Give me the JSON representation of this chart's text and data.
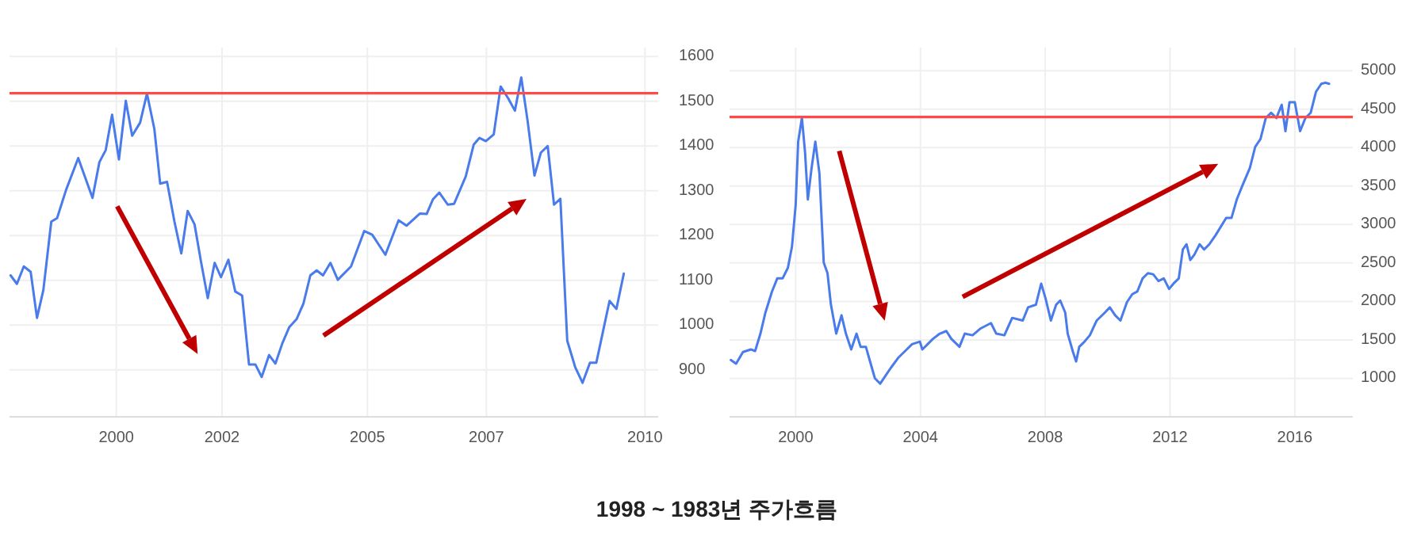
{
  "chart_data": [
    {
      "type": "line",
      "xlim": [
        1997.98,
        2010.25
      ],
      "ylim": [
        795,
        1620
      ],
      "xticks": [
        2000,
        2002,
        {
          "value": 2004.75,
          "label": "2005"
        },
        2007,
        2010
      ],
      "yticks": [
        900,
        1000,
        1100,
        1200,
        1300,
        1400,
        1500,
        1600
      ],
      "grid": true,
      "ref_lines": [
        {
          "axis": "y",
          "value": 1518,
          "color": "#ff4a4a"
        }
      ],
      "annotations": [
        "1998 ~ 1983년 주가흐름"
      ],
      "series": [
        {
          "color": "#4a7bea",
          "x": [
            1998.0,
            1998.12,
            1998.25,
            1998.38,
            1998.5,
            1998.62,
            1998.77,
            1998.88,
            1999.05,
            1999.28,
            1999.55,
            1999.68,
            1999.8,
            1999.92,
            2000.05,
            2000.18,
            2000.3,
            2000.45,
            2000.58,
            2000.72,
            2000.83,
            2000.96,
            2001.1,
            2001.23,
            2001.35,
            2001.48,
            2001.6,
            2001.73,
            2001.86,
            2001.98,
            2002.12,
            2002.25,
            2002.38,
            2002.51,
            2002.63,
            2002.75,
            2002.89,
            2003.01,
            2003.14,
            2003.27,
            2003.41,
            2003.54,
            2003.67,
            2003.79,
            2003.91,
            2004.05,
            2004.19,
            2004.44,
            2004.69,
            2004.84,
            2005.09,
            2005.34,
            2005.49,
            2005.74,
            2005.87,
            2005.99,
            2006.11,
            2006.27,
            2006.39,
            2006.61,
            2006.76,
            2006.87,
            2006.99,
            2007.14,
            2007.27,
            2007.41,
            2007.54,
            2007.66,
            2007.78,
            2007.91,
            2008.03,
            2008.16,
            2008.28,
            2008.4,
            2008.53,
            2008.68,
            2008.82,
            2008.96,
            2009.08,
            2009.33,
            2009.46,
            2009.6
          ],
          "values": [
            1111,
            1092,
            1131,
            1119,
            1016,
            1078,
            1231,
            1239,
            1302,
            1373,
            1284,
            1364,
            1391,
            1470,
            1370,
            1501,
            1423,
            1452,
            1517,
            1438,
            1316,
            1320,
            1231,
            1160,
            1255,
            1225,
            1143,
            1060,
            1139,
            1107,
            1146,
            1075,
            1066,
            912,
            912,
            884,
            933,
            914,
            959,
            995,
            1013,
            1048,
            1111,
            1122,
            1111,
            1139,
            1101,
            1131,
            1210,
            1202,
            1157,
            1234,
            1222,
            1249,
            1248,
            1281,
            1296,
            1269,
            1271,
            1332,
            1403,
            1418,
            1411,
            1426,
            1533,
            1507,
            1479,
            1553,
            1456,
            1334,
            1385,
            1400,
            1269,
            1282,
            965,
            906,
            871,
            916,
            916,
            1054,
            1036,
            1115
          ]
        }
      ]
    },
    {
      "type": "line",
      "xlim": [
        1997.88,
        2017.86
      ],
      "ylim": [
        500,
        5300
      ],
      "xticks": [
        2000,
        2004,
        2008,
        2012,
        2016
      ],
      "yticks": [
        1000,
        1500,
        2000,
        2500,
        3000,
        3500,
        4000,
        4500,
        5000
      ],
      "grid": true,
      "ref_lines": [
        {
          "axis": "y",
          "value": 4398,
          "color": "#ff4a4a"
        }
      ],
      "series": [
        {
          "color": "#4a7bea",
          "x": [
            1997.92,
            1998.09,
            1998.31,
            1998.56,
            1998.7,
            1998.87,
            1999.03,
            1999.24,
            1999.41,
            1999.58,
            1999.75,
            1999.88,
            2000.0,
            2000.08,
            2000.2,
            2000.3,
            2000.39,
            2000.51,
            2000.63,
            2000.76,
            2000.9,
            2001.02,
            2001.13,
            2001.3,
            2001.47,
            2001.61,
            2001.78,
            2001.95,
            2002.08,
            2002.25,
            2002.37,
            2002.54,
            2002.71,
            2002.88,
            2003.05,
            2003.3,
            2003.56,
            2003.73,
            2003.98,
            2004.06,
            2004.23,
            2004.4,
            2004.62,
            2004.83,
            2004.99,
            2005.25,
            2005.42,
            2005.67,
            2005.93,
            2006.26,
            2006.43,
            2006.69,
            2006.94,
            2007.28,
            2007.45,
            2007.7,
            2007.87,
            2008.01,
            2008.18,
            2008.35,
            2008.48,
            2008.64,
            2008.72,
            2008.89,
            2008.99,
            2009.09,
            2009.26,
            2009.43,
            2009.65,
            2009.91,
            2010.07,
            2010.24,
            2010.41,
            2010.62,
            2010.79,
            2010.95,
            2011.12,
            2011.29,
            2011.46,
            2011.63,
            2011.8,
            2011.97,
            2012.11,
            2012.28,
            2012.41,
            2012.53,
            2012.65,
            2012.78,
            2012.95,
            2013.09,
            2013.26,
            2013.46,
            2013.8,
            2013.97,
            2014.14,
            2014.31,
            2014.56,
            2014.73,
            2014.9,
            2015.07,
            2015.24,
            2015.41,
            2015.58,
            2015.7,
            2015.83,
            2016.0,
            2016.17,
            2016.34,
            2016.51,
            2016.68,
            2016.85,
            2016.98,
            2017.1
          ],
          "values": [
            1239,
            1191,
            1342,
            1376,
            1355,
            1581,
            1855,
            2128,
            2299,
            2299,
            2436,
            2709,
            3256,
            4077,
            4385,
            3940,
            3325,
            3735,
            4077,
            3667,
            2504,
            2367,
            1957,
            1581,
            1820,
            1581,
            1376,
            1581,
            1410,
            1410,
            1239,
            1000,
            931,
            1034,
            1136,
            1273,
            1376,
            1444,
            1478,
            1376,
            1444,
            1513,
            1581,
            1615,
            1513,
            1410,
            1581,
            1560,
            1649,
            1718,
            1581,
            1560,
            1786,
            1752,
            1923,
            1957,
            2231,
            2039,
            1752,
            1957,
            2012,
            1855,
            1581,
            1342,
            1219,
            1410,
            1478,
            1560,
            1752,
            1855,
            1923,
            1820,
            1752,
            1991,
            2094,
            2128,
            2299,
            2367,
            2353,
            2265,
            2299,
            2162,
            2231,
            2299,
            2675,
            2743,
            2538,
            2607,
            2743,
            2675,
            2743,
            2860,
            3085,
            3085,
            3325,
            3496,
            3735,
            4008,
            4111,
            4385,
            4453,
            4385,
            4556,
            4214,
            4590,
            4590,
            4214,
            4385,
            4453,
            4726,
            4829,
            4843,
            4829
          ]
        }
      ]
    }
  ]
}
